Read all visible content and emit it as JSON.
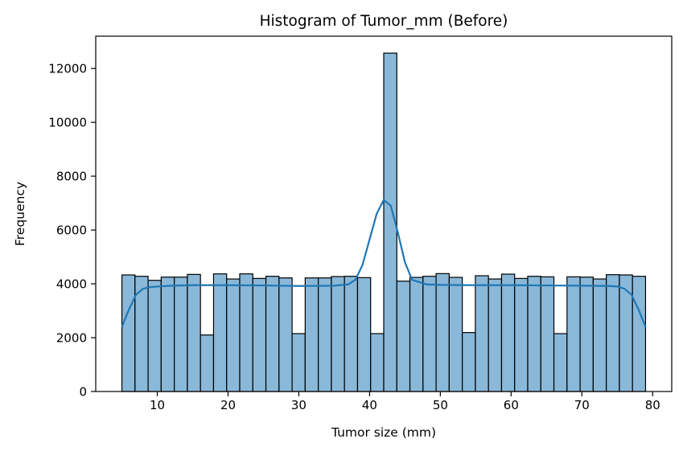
{
  "chart_data": {
    "type": "bar",
    "title": "Histogram of Tumor_mm (Before)",
    "xlabel": "Tumor size (mm)",
    "ylabel": "Frequency",
    "xlim": [
      1.3,
      82.7
    ],
    "ylim": [
      0,
      13200
    ],
    "xticks": [
      10,
      20,
      30,
      40,
      50,
      60,
      70,
      80
    ],
    "yticks": [
      0,
      2000,
      4000,
      6000,
      8000,
      10000,
      12000
    ],
    "bin_edges": [
      5.0,
      6.85,
      8.7,
      10.55,
      12.4,
      14.25,
      16.1,
      17.95,
      19.8,
      21.65,
      23.5,
      25.35,
      27.2,
      29.05,
      30.9,
      32.75,
      34.6,
      36.45,
      38.3,
      40.15,
      42.0,
      43.85,
      45.7,
      47.55,
      49.4,
      51.25,
      53.1,
      54.95,
      56.8,
      58.65,
      60.5,
      62.35,
      64.2,
      66.05,
      67.9,
      69.75,
      71.6,
      73.45,
      75.3,
      77.15,
      79.0
    ],
    "values": [
      4330,
      4280,
      4130,
      4250,
      4250,
      4350,
      2100,
      4370,
      4180,
      4370,
      4200,
      4280,
      4220,
      2150,
      4220,
      4220,
      4270,
      4280,
      4230,
      2150,
      12570,
      4100,
      4240,
      4280,
      4380,
      4240,
      2190,
      4300,
      4180,
      4360,
      4200,
      4280,
      4260,
      2150,
      4260,
      4250,
      4180,
      4340,
      4330,
      4280
    ],
    "kde": {
      "x": [
        5,
        6,
        7,
        8,
        9,
        10,
        12,
        15,
        20,
        25,
        30,
        35,
        37,
        38,
        39,
        40,
        41,
        42,
        43,
        44,
        45,
        46,
        48,
        50,
        55,
        60,
        65,
        70,
        74,
        75,
        76,
        77,
        78,
        79
      ],
      "y": [
        2400,
        3050,
        3600,
        3820,
        3880,
        3900,
        3930,
        3950,
        3950,
        3940,
        3920,
        3930,
        3980,
        4150,
        4700,
        5650,
        6600,
        7120,
        6900,
        5900,
        4800,
        4150,
        3980,
        3960,
        3950,
        3950,
        3940,
        3930,
        3920,
        3900,
        3820,
        3600,
        3050,
        2400
      ]
    },
    "colors": {
      "bar_fill": "#8ab8d9",
      "bar_edge": "#000000",
      "kde_line": "#1f77b4"
    },
    "grid": false,
    "legend": "none"
  }
}
